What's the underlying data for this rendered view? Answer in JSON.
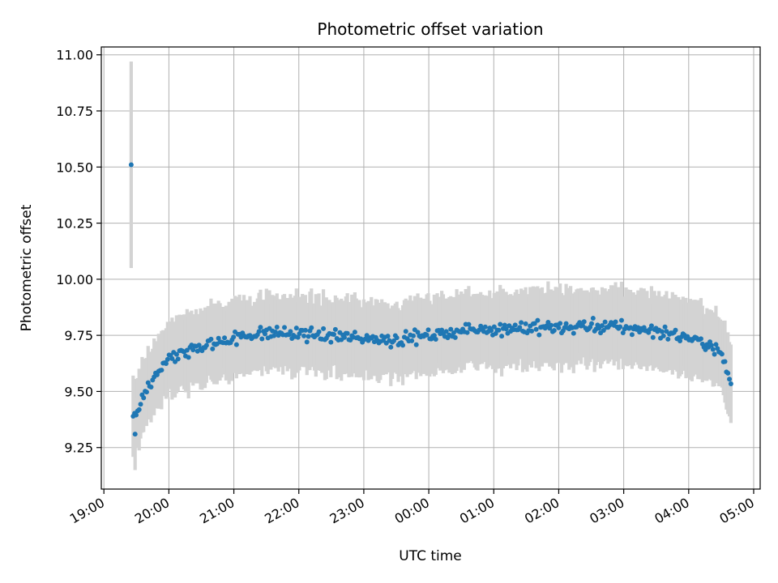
{
  "chart_data": {
    "type": "scatter",
    "title": "Photometric offset variation",
    "xlabel": "UTC time",
    "ylabel": "Photometric offset",
    "x_unit": "hours since 19:00 UTC",
    "xlim": [
      -0.04,
      10.1
    ],
    "ylim": [
      9.065,
      11.035
    ],
    "x_ticks": [
      {
        "value": 0,
        "label": "19:00"
      },
      {
        "value": 1,
        "label": "20:00"
      },
      {
        "value": 2,
        "label": "21:00"
      },
      {
        "value": 3,
        "label": "22:00"
      },
      {
        "value": 4,
        "label": "23:00"
      },
      {
        "value": 5,
        "label": "00:00"
      },
      {
        "value": 6,
        "label": "01:00"
      },
      {
        "value": 7,
        "label": "02:00"
      },
      {
        "value": 8,
        "label": "03:00"
      },
      {
        "value": 9,
        "label": "04:00"
      },
      {
        "value": 10,
        "label": "05:00"
      }
    ],
    "y_ticks": [
      {
        "value": 9.25,
        "label": "9.25"
      },
      {
        "value": 9.5,
        "label": "9.50"
      },
      {
        "value": 9.75,
        "label": "9.75"
      },
      {
        "value": 10.0,
        "label": "10.00"
      },
      {
        "value": 10.25,
        "label": "10.25"
      },
      {
        "value": 10.5,
        "label": "10.50"
      },
      {
        "value": 10.75,
        "label": "10.75"
      },
      {
        "value": 11.0,
        "label": "11.00"
      }
    ],
    "grid": true,
    "point_color": "#1f77b4",
    "errorbar_color": "#d3d3d3",
    "x_start": 0.45,
    "x_end": 9.65,
    "n_points": 400,
    "error_halfwidth": 0.16,
    "outlier_points": [
      {
        "x": 0.42,
        "y": 10.51,
        "err": 0.46
      },
      {
        "x": 0.48,
        "y": 9.31,
        "err": 0.16
      }
    ],
    "trend_points": [
      {
        "x": 0.5,
        "y": 9.4
      },
      {
        "x": 0.6,
        "y": 9.48
      },
      {
        "x": 0.7,
        "y": 9.53
      },
      {
        "x": 0.8,
        "y": 9.57
      },
      {
        "x": 0.9,
        "y": 9.61
      },
      {
        "x": 1.0,
        "y": 9.64
      },
      {
        "x": 1.2,
        "y": 9.67
      },
      {
        "x": 1.5,
        "y": 9.7
      },
      {
        "x": 2.0,
        "y": 9.74
      },
      {
        "x": 2.5,
        "y": 9.76
      },
      {
        "x": 3.0,
        "y": 9.755
      },
      {
        "x": 3.5,
        "y": 9.745
      },
      {
        "x": 4.0,
        "y": 9.74
      },
      {
        "x": 4.5,
        "y": 9.73
      },
      {
        "x": 5.0,
        "y": 9.75
      },
      {
        "x": 5.5,
        "y": 9.77
      },
      {
        "x": 6.0,
        "y": 9.78
      },
      {
        "x": 6.5,
        "y": 9.785
      },
      {
        "x": 7.0,
        "y": 9.785
      },
      {
        "x": 7.5,
        "y": 9.79
      },
      {
        "x": 8.0,
        "y": 9.785
      },
      {
        "x": 8.5,
        "y": 9.77
      },
      {
        "x": 9.0,
        "y": 9.74
      },
      {
        "x": 9.3,
        "y": 9.71
      },
      {
        "x": 9.45,
        "y": 9.68
      },
      {
        "x": 9.55,
        "y": 9.63
      },
      {
        "x": 9.65,
        "y": 9.54
      }
    ]
  }
}
